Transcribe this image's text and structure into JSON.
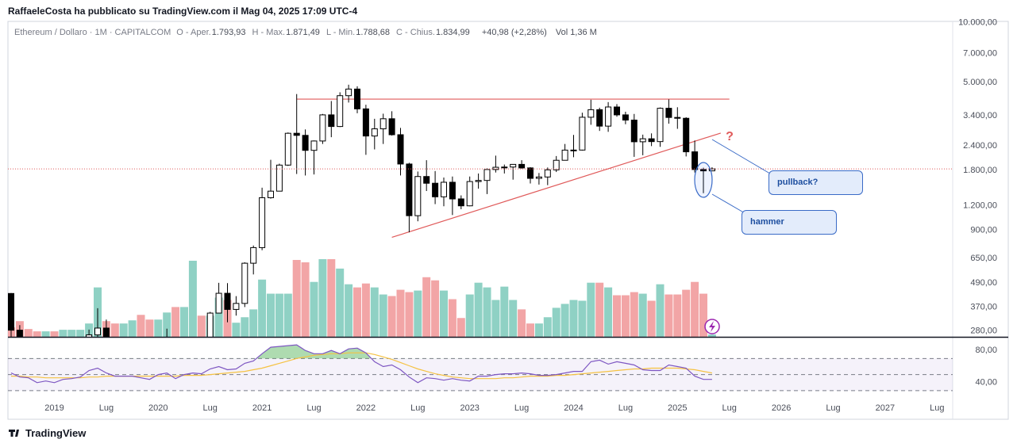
{
  "header": "RaffaeleCosta ha pubblicato su TradingView.com il Mag 04, 2025 17:09 UTC-4",
  "footer": "TradingView",
  "chart_data": {
    "type": "candlestick",
    "legend": {
      "symbol": "Ethereum / Dollaro · 1M · CAPITALCOM",
      "items": [
        {
          "key": "O - Aper.",
          "value": "1.793,93"
        },
        {
          "key": "H - Max.",
          "value": "1.871,49"
        },
        {
          "key": "L - Min.",
          "value": "1.788,68"
        },
        {
          "key": "C - Chius.",
          "value": "1.834,99"
        }
      ],
      "change": "+40,98 (+2,28%)",
      "volume": "Vol 1,36 M"
    },
    "x": [
      "2018-08",
      "2018-09",
      "2018-10",
      "2018-11",
      "2018-12",
      "2019-01",
      "2019-02",
      "2019-03",
      "2019-04",
      "2019-05",
      "2019-06",
      "2019-07",
      "2019-08",
      "2019-09",
      "2019-10",
      "2019-11",
      "2019-12",
      "2020-01",
      "2020-02",
      "2020-03",
      "2020-04",
      "2020-05",
      "2020-06",
      "2020-07",
      "2020-08",
      "2020-09",
      "2020-10",
      "2020-11",
      "2020-12",
      "2021-01",
      "2021-02",
      "2021-03",
      "2021-04",
      "2021-05",
      "2021-06",
      "2021-07",
      "2021-08",
      "2021-09",
      "2021-10",
      "2021-11",
      "2021-12",
      "2022-01",
      "2022-02",
      "2022-03",
      "2022-04",
      "2022-05",
      "2022-06",
      "2022-07",
      "2022-08",
      "2022-09",
      "2022-10",
      "2022-11",
      "2022-12",
      "2023-01",
      "2023-02",
      "2023-03",
      "2023-04",
      "2023-05",
      "2023-06",
      "2023-07",
      "2023-08",
      "2023-09",
      "2023-10",
      "2023-11",
      "2023-12",
      "2024-01",
      "2024-02",
      "2024-03",
      "2024-04",
      "2024-05",
      "2024-06",
      "2024-07",
      "2024-08",
      "2024-09",
      "2024-10",
      "2024-11",
      "2024-12",
      "2025-01",
      "2025-02",
      "2025-03",
      "2025-04",
      "2025-05"
    ],
    "open": [
      433,
      283,
      232,
      198,
      113,
      133,
      107,
      136,
      141,
      162,
      268,
      290,
      218,
      172,
      180,
      182,
      151,
      129,
      180,
      218,
      133,
      206,
      231,
      225,
      345,
      434,
      360,
      386,
      615,
      737,
      1314,
      1418,
      1918,
      2773,
      2707,
      2275,
      2536,
      3433,
      3000,
      4288,
      4630,
      3680,
      2687,
      2920,
      3282,
      2727,
      1942,
      1067,
      1680,
      1554,
      1328,
      1572,
      1296,
      1196,
      1585,
      1605,
      1822,
      1870,
      1875,
      1934,
      1856,
      1645,
      1671,
      1815,
      2028,
      2282,
      2283,
      3340,
      3645,
      3013,
      3761,
      3433,
      3232,
      2513,
      2602,
      2518,
      3706,
      3332,
      3300,
      2237,
      1822,
      1793.93
    ],
    "high": [
      435,
      300,
      230,
      220,
      160,
      160,
      165,
      145,
      185,
      285,
      365,
      320,
      240,
      225,
      198,
      195,
      155,
      185,
      288,
      253,
      228,
      250,
      254,
      350,
      490,
      488,
      420,
      622,
      755,
      1476,
      2040,
      1950,
      2800,
      4370,
      2900,
      2550,
      3470,
      4030,
      4460,
      4870,
      4780,
      3860,
      3280,
      3480,
      3580,
      2950,
      1970,
      1780,
      2030,
      1790,
      1660,
      1680,
      1350,
      1680,
      1740,
      1850,
      2140,
      1930,
      1940,
      2030,
      1870,
      1750,
      1865,
      2130,
      2450,
      2720,
      3520,
      4090,
      3730,
      3980,
      3890,
      3560,
      3470,
      2730,
      2770,
      3740,
      4110,
      3750,
      3340,
      2550,
      1860,
      1871.49
    ],
    "low": [
      250,
      167,
      190,
      100,
      82,
      100,
      100,
      126,
      140,
      157,
      230,
      190,
      165,
      152,
      155,
      140,
      116,
      127,
      180,
      90,
      125,
      180,
      215,
      222,
      350,
      310,
      335,
      370,
      540,
      715,
      1300,
      1450,
      1900,
      1730,
      1700,
      1720,
      2450,
      2650,
      2980,
      3960,
      3500,
      2160,
      2300,
      2450,
      2700,
      1700,
      880,
      1000,
      1420,
      1220,
      1190,
      1075,
      1150,
      1190,
      1460,
      1370,
      1760,
      1740,
      1620,
      1840,
      1550,
      1530,
      1520,
      1770,
      2030,
      2100,
      2270,
      3060,
      2850,
      2820,
      3360,
      3080,
      2110,
      2150,
      2390,
      2370,
      3100,
      2920,
      2120,
      1760,
      1385,
      1788.68
    ],
    "close": [
      283,
      232,
      198,
      113,
      133,
      107,
      136,
      141,
      162,
      268,
      290,
      218,
      172,
      180,
      182,
      151,
      129,
      180,
      218,
      133,
      206,
      231,
      225,
      345,
      434,
      360,
      386,
      615,
      737,
      1314,
      1418,
      1918,
      2773,
      2707,
      2275,
      2536,
      3433,
      3000,
      4288,
      4630,
      3680,
      2687,
      2920,
      3282,
      2727,
      1942,
      1067,
      1680,
      1554,
      1328,
      1572,
      1296,
      1196,
      1585,
      1605,
      1822,
      1870,
      1875,
      1934,
      1856,
      1645,
      1671,
      1815,
      2028,
      2282,
      2283,
      3340,
      3645,
      3013,
      3761,
      3433,
      3232,
      2513,
      2602,
      2518,
      3706,
      3332,
      3300,
      2237,
      1822,
      1793.93,
      1834.99
    ],
    "volume": [
      12,
      20,
      10,
      7,
      7,
      7,
      9,
      9,
      9,
      17,
      63,
      20,
      17,
      17,
      21,
      28,
      22,
      22,
      31,
      38,
      38,
      97,
      27,
      27,
      50,
      47,
      18,
      25,
      35,
      73,
      55,
      55,
      55,
      98,
      95,
      70,
      99,
      99,
      87,
      67,
      63,
      68,
      63,
      54,
      52,
      60,
      57,
      59,
      76,
      72,
      59,
      48,
      24,
      54,
      69,
      63,
      47,
      64,
      47,
      35,
      17,
      17,
      25,
      37,
      42,
      47,
      46,
      69,
      69,
      63,
      53,
      53,
      57,
      55,
      46,
      67,
      54,
      54,
      60,
      70,
      55,
      3
    ],
    "colors": {
      "up": "#ffffff",
      "down": "#000000",
      "wick": "#000000",
      "volume_up": "#8fd1c4",
      "volume_down": "#f2a5a6"
    },
    "log_scale": true,
    "ylim": [
      262,
      10050
    ],
    "yticks": [
      {
        "value": 10000,
        "label": "10.000,00"
      },
      {
        "value": 7000,
        "label": "7.000,00"
      },
      {
        "value": 5000,
        "label": "5.000,00"
      },
      {
        "value": 3400,
        "label": "3.400,00"
      },
      {
        "value": 2400,
        "label": "2.400,00"
      },
      {
        "value": 1800,
        "label": "1.800,00"
      },
      {
        "value": 1200,
        "label": "1.200,00"
      },
      {
        "value": 900,
        "label": "900,00"
      },
      {
        "value": 650,
        "label": "650,00"
      },
      {
        "value": 490,
        "label": "490,00"
      },
      {
        "value": 370,
        "label": "370,00"
      },
      {
        "value": 280,
        "label": "280,00"
      }
    ],
    "xticks": [
      {
        "value": "2019-01",
        "label": "2019"
      },
      {
        "value": "2019-07",
        "label": "Lug"
      },
      {
        "value": "2020-01",
        "label": "2020"
      },
      {
        "value": "2020-07",
        "label": "Lug"
      },
      {
        "value": "2021-01",
        "label": "2021"
      },
      {
        "value": "2021-07",
        "label": "Lug"
      },
      {
        "value": "2022-01",
        "label": "2022"
      },
      {
        "value": "2022-07",
        "label": "Lug"
      },
      {
        "value": "2023-01",
        "label": "2023"
      },
      {
        "value": "2023-07",
        "label": "Lug"
      },
      {
        "value": "2024-01",
        "label": "2024"
      },
      {
        "value": "2024-07",
        "label": "Lug"
      },
      {
        "value": "2025-01",
        "label": "2025"
      },
      {
        "value": "2025-07",
        "label": "Lug"
      },
      {
        "value": "2026-01",
        "label": "2026"
      },
      {
        "value": "2026-07",
        "label": "Lug"
      },
      {
        "value": "2027-01",
        "label": "2027"
      },
      {
        "value": "2027-07",
        "label": "Lug"
      }
    ],
    "rsi": {
      "color": "#7e57c2",
      "values": [
        52,
        47,
        46,
        40,
        42,
        40,
        44,
        45,
        47,
        55,
        58,
        52,
        48,
        48,
        48,
        46,
        44,
        50,
        52,
        45,
        50,
        52,
        51,
        57,
        60,
        56,
        57,
        64,
        67,
        76,
        84,
        85,
        86,
        87,
        80,
        76,
        76,
        80,
        76,
        82,
        83,
        77,
        66,
        60,
        62,
        56,
        47,
        40,
        46,
        45,
        43,
        45,
        43,
        42,
        48,
        48,
        50,
        51,
        51,
        52,
        51,
        49,
        49,
        50,
        52,
        54,
        54,
        66,
        68,
        63,
        66,
        64,
        62,
        56,
        55,
        55,
        62,
        60,
        58,
        48,
        44,
        44
      ]
    },
    "rsi_ma": {
      "color": "#f5c242",
      "values": [
        48,
        48,
        47,
        47,
        46,
        46,
        46,
        46,
        46,
        47,
        47,
        48,
        48,
        48,
        48,
        48,
        48,
        48,
        48,
        48,
        49,
        49,
        49,
        50,
        51,
        52,
        53,
        54,
        56,
        58,
        61,
        64,
        67,
        70,
        72,
        74,
        75,
        76,
        76,
        77,
        77,
        77,
        75,
        72,
        69,
        65,
        61,
        57,
        54,
        51,
        49,
        47,
        46,
        45,
        45,
        45,
        45,
        46,
        46,
        47,
        48,
        48,
        48,
        49,
        49,
        50,
        51,
        52,
        53,
        54,
        55,
        56,
        57,
        57,
        58,
        58,
        58,
        58,
        57,
        56,
        54,
        52
      ]
    },
    "rsi_bands": [
      70,
      50,
      30
    ],
    "rsi_ylim": [
      23,
      94
    ],
    "rsi_yticks": [
      {
        "value": 80,
        "label": "80,00"
      },
      {
        "value": 40,
        "label": "40,00"
      }
    ],
    "drawings": {
      "resistance": {
        "from": "2021-05",
        "to": "2025-07",
        "price": 4120,
        "color": "#e05a5a"
      },
      "trendline": {
        "from": "2022-04",
        "from_price": 830,
        "to": "2025-06",
        "to_price": 2780,
        "color": "#e05a5a"
      }
    },
    "annotations": {
      "question": "?",
      "pullback": "pullback?",
      "hammer": "hammer"
    }
  }
}
